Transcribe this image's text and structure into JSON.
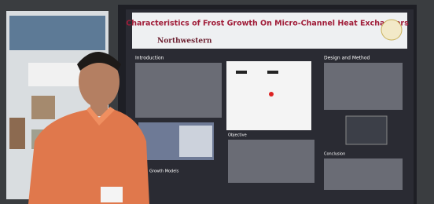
{
  "poster": {
    "title": "Characteristics of Frost Growth On Micro-Channel Heat Exchangers",
    "logo": "Northwestern",
    "sections": [
      "Introduction",
      "Design and Method",
      "Objective",
      "Growth Models",
      "Conclusion"
    ]
  }
}
